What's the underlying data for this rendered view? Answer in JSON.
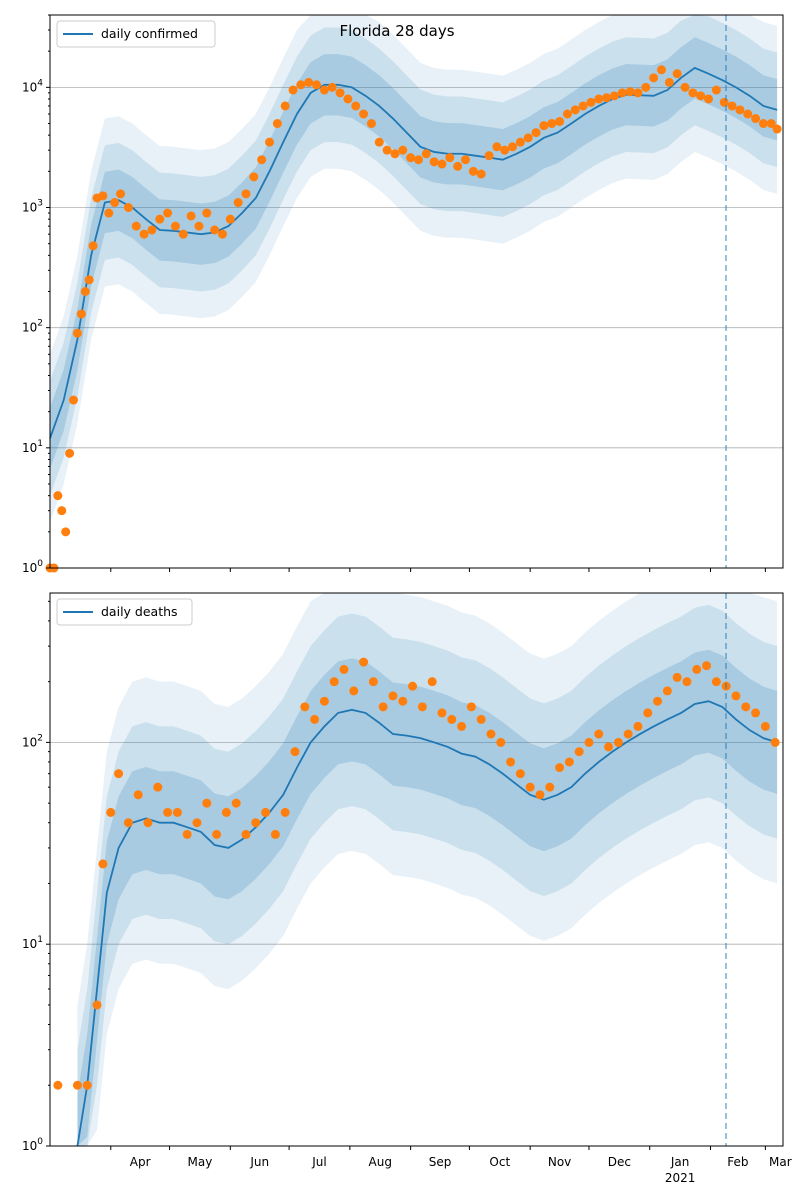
{
  "chart_data": [
    {
      "type": "line",
      "title": "Florida 28 days",
      "yscale": "log",
      "ylim": [
        1,
        40000
      ],
      "y_ticks": [
        1,
        10,
        100,
        1000,
        10000
      ],
      "y_tick_labels": [
        "10^0",
        "10^1",
        "10^2",
        "10^3",
        "10^4"
      ],
      "grid": "horizontal",
      "legend_position": "top-left",
      "series": [
        {
          "name": "daily confirmed",
          "kind": "line",
          "color": "#1f77b4",
          "x": [
            "2020-03-01",
            "2020-03-08",
            "2020-03-15",
            "2020-03-22",
            "2020-03-29",
            "2020-04-05",
            "2020-04-12",
            "2020-04-19",
            "2020-04-26",
            "2020-05-03",
            "2020-05-10",
            "2020-05-17",
            "2020-05-24",
            "2020-05-31",
            "2020-06-07",
            "2020-06-14",
            "2020-06-21",
            "2020-06-28",
            "2020-07-05",
            "2020-07-12",
            "2020-07-19",
            "2020-07-26",
            "2020-08-02",
            "2020-08-09",
            "2020-08-16",
            "2020-08-23",
            "2020-08-30",
            "2020-09-06",
            "2020-09-13",
            "2020-09-20",
            "2020-09-27",
            "2020-10-04",
            "2020-10-11",
            "2020-10-18",
            "2020-10-25",
            "2020-11-01",
            "2020-11-08",
            "2020-11-15",
            "2020-11-22",
            "2020-11-29",
            "2020-12-06",
            "2020-12-13",
            "2020-12-20",
            "2020-12-27",
            "2021-01-03",
            "2021-01-10",
            "2021-01-17",
            "2021-01-24",
            "2021-01-31",
            "2021-02-07",
            "2021-02-14",
            "2021-02-21",
            "2021-02-28",
            "2021-03-07"
          ],
          "y": [
            12,
            25,
            80,
            400,
            1100,
            1150,
            1000,
            800,
            650,
            640,
            620,
            600,
            620,
            700,
            900,
            1200,
            2000,
            3500,
            6000,
            9000,
            10500,
            10500,
            10000,
            8500,
            7000,
            5500,
            4200,
            3200,
            2900,
            2800,
            2800,
            2700,
            2600,
            2500,
            2800,
            3200,
            3800,
            4200,
            5000,
            6000,
            7000,
            8000,
            8700,
            8600,
            8500,
            9500,
            12000,
            14500,
            13000,
            11500,
            10000,
            8500,
            7000,
            6500
          ]
        },
        {
          "name": "",
          "kind": "scatter",
          "color": "#ff7f0e",
          "x": [
            "2020-03-01",
            "2020-03-03",
            "2020-03-05",
            "2020-03-07",
            "2020-03-09",
            "2020-03-11",
            "2020-03-13",
            "2020-03-15",
            "2020-03-17",
            "2020-03-19",
            "2020-03-21",
            "2020-03-23",
            "2020-03-25",
            "2020-03-28",
            "2020-03-31",
            "2020-04-03",
            "2020-04-06",
            "2020-04-10",
            "2020-04-14",
            "2020-04-18",
            "2020-04-22",
            "2020-04-26",
            "2020-04-30",
            "2020-05-04",
            "2020-05-08",
            "2020-05-12",
            "2020-05-16",
            "2020-05-20",
            "2020-05-24",
            "2020-05-28",
            "2020-06-01",
            "2020-06-05",
            "2020-06-09",
            "2020-06-13",
            "2020-06-17",
            "2020-06-21",
            "2020-06-25",
            "2020-06-29",
            "2020-07-03",
            "2020-07-07",
            "2020-07-11",
            "2020-07-15",
            "2020-07-19",
            "2020-07-23",
            "2020-07-27",
            "2020-07-31",
            "2020-08-04",
            "2020-08-08",
            "2020-08-12",
            "2020-08-16",
            "2020-08-20",
            "2020-08-24",
            "2020-08-28",
            "2020-09-01",
            "2020-09-05",
            "2020-09-09",
            "2020-09-13",
            "2020-09-17",
            "2020-09-21",
            "2020-09-25",
            "2020-09-29",
            "2020-10-03",
            "2020-10-07",
            "2020-10-11",
            "2020-10-15",
            "2020-10-19",
            "2020-10-23",
            "2020-10-27",
            "2020-10-31",
            "2020-11-04",
            "2020-11-08",
            "2020-11-12",
            "2020-11-16",
            "2020-11-20",
            "2020-11-24",
            "2020-11-28",
            "2020-12-02",
            "2020-12-06",
            "2020-12-10",
            "2020-12-14",
            "2020-12-18",
            "2020-12-22",
            "2020-12-26",
            "2020-12-30",
            "2021-01-03",
            "2021-01-07",
            "2021-01-11",
            "2021-01-15",
            "2021-01-19",
            "2021-01-23",
            "2021-01-27",
            "2021-01-31",
            "2021-02-04",
            "2021-02-08",
            "2021-02-12",
            "2021-02-16",
            "2021-02-20",
            "2021-02-24",
            "2021-02-28",
            "2021-03-04",
            "2021-03-07"
          ],
          "y": [
            1,
            1,
            4,
            3,
            2,
            9,
            25,
            90,
            130,
            200,
            250,
            480,
            1200,
            1250,
            900,
            1100,
            1300,
            1000,
            700,
            600,
            650,
            800,
            900,
            700,
            600,
            850,
            700,
            900,
            650,
            600,
            800,
            1100,
            1300,
            1800,
            2500,
            3500,
            5000,
            7000,
            9500,
            10500,
            11000,
            10500,
            9500,
            10000,
            9000,
            8000,
            7000,
            6000,
            5000,
            3500,
            3000,
            2800,
            3000,
            2600,
            2500,
            2800,
            2400,
            2300,
            2600,
            2200,
            2500,
            2000,
            1900,
            2700,
            3200,
            3000,
            3200,
            3500,
            3800,
            4200,
            4800,
            5000,
            5200,
            6000,
            6500,
            7000,
            7500,
            8000,
            8200,
            8500,
            9000,
            9200,
            9000,
            10000,
            12000,
            14000,
            11000,
            13000,
            10000,
            9000,
            8500,
            8000,
            9500,
            7500,
            7000,
            6500,
            6000,
            5500,
            5000,
            5000,
            4500
          ]
        }
      ]
    },
    {
      "type": "line",
      "title": "",
      "yscale": "log",
      "ylim": [
        1,
        550
      ],
      "y_ticks": [
        1,
        10,
        100
      ],
      "y_tick_labels": [
        "10^0",
        "10^1",
        "10^2"
      ],
      "grid": "horizontal",
      "legend_position": "top-left",
      "x_tick_labels": [
        "Apr",
        "May",
        "Jun",
        "Jul",
        "Aug",
        "Sep",
        "Oct",
        "Nov",
        "Dec",
        "Jan",
        "Feb",
        "Mar"
      ],
      "x_year_label": "2021",
      "series": [
        {
          "name": "daily deaths",
          "kind": "line",
          "color": "#1f77b4",
          "x": [
            "2020-03-15",
            "2020-03-20",
            "2020-03-25",
            "2020-03-30",
            "2020-04-05",
            "2020-04-12",
            "2020-04-19",
            "2020-04-26",
            "2020-05-03",
            "2020-05-10",
            "2020-05-17",
            "2020-05-24",
            "2020-05-31",
            "2020-06-07",
            "2020-06-14",
            "2020-06-21",
            "2020-06-28",
            "2020-07-05",
            "2020-07-12",
            "2020-07-19",
            "2020-07-26",
            "2020-08-02",
            "2020-08-09",
            "2020-08-16",
            "2020-08-23",
            "2020-08-30",
            "2020-09-06",
            "2020-09-13",
            "2020-09-20",
            "2020-09-27",
            "2020-10-04",
            "2020-10-11",
            "2020-10-18",
            "2020-10-25",
            "2020-11-01",
            "2020-11-08",
            "2020-11-15",
            "2020-11-22",
            "2020-11-29",
            "2020-12-06",
            "2020-12-13",
            "2020-12-20",
            "2020-12-27",
            "2021-01-03",
            "2021-01-10",
            "2021-01-17",
            "2021-01-24",
            "2021-01-31",
            "2021-02-07",
            "2021-02-14",
            "2021-02-21",
            "2021-02-28",
            "2021-03-07"
          ],
          "y": [
            1,
            2,
            6,
            18,
            30,
            40,
            42,
            40,
            40,
            38,
            36,
            31,
            30,
            33,
            38,
            45,
            55,
            75,
            100,
            120,
            140,
            145,
            140,
            125,
            110,
            108,
            105,
            100,
            95,
            88,
            85,
            78,
            70,
            62,
            55,
            52,
            55,
            60,
            70,
            80,
            90,
            100,
            110,
            120,
            130,
            140,
            155,
            160,
            150,
            130,
            115,
            105,
            100
          ]
        },
        {
          "name": "",
          "kind": "scatter",
          "color": "#ff7f0e",
          "x": [
            "2020-03-05",
            "2020-03-15",
            "2020-03-20",
            "2020-03-25",
            "2020-03-28",
            "2020-04-01",
            "2020-04-05",
            "2020-04-10",
            "2020-04-15",
            "2020-04-20",
            "2020-04-25",
            "2020-04-30",
            "2020-05-05",
            "2020-05-10",
            "2020-05-15",
            "2020-05-20",
            "2020-05-25",
            "2020-05-30",
            "2020-06-04",
            "2020-06-09",
            "2020-06-14",
            "2020-06-19",
            "2020-06-24",
            "2020-06-29",
            "2020-07-04",
            "2020-07-09",
            "2020-07-14",
            "2020-07-19",
            "2020-07-24",
            "2020-07-29",
            "2020-08-03",
            "2020-08-08",
            "2020-08-13",
            "2020-08-18",
            "2020-08-23",
            "2020-08-28",
            "2020-09-02",
            "2020-09-07",
            "2020-09-12",
            "2020-09-17",
            "2020-09-22",
            "2020-09-27",
            "2020-10-02",
            "2020-10-07",
            "2020-10-12",
            "2020-10-17",
            "2020-10-22",
            "2020-10-27",
            "2020-11-01",
            "2020-11-06",
            "2020-11-11",
            "2020-11-16",
            "2020-11-21",
            "2020-11-26",
            "2020-12-01",
            "2020-12-06",
            "2020-12-11",
            "2020-12-16",
            "2020-12-21",
            "2020-12-26",
            "2020-12-31",
            "2021-01-05",
            "2021-01-10",
            "2021-01-15",
            "2021-01-20",
            "2021-01-25",
            "2021-01-30",
            "2021-02-04",
            "2021-02-09",
            "2021-02-14",
            "2021-02-19",
            "2021-02-24",
            "2021-03-01",
            "2021-03-06"
          ],
          "y": [
            2,
            2,
            2,
            5,
            25,
            45,
            70,
            40,
            55,
            40,
            60,
            45,
            45,
            35,
            40,
            50,
            35,
            45,
            50,
            35,
            40,
            45,
            35,
            45,
            90,
            150,
            130,
            160,
            200,
            230,
            180,
            250,
            200,
            150,
            170,
            160,
            190,
            150,
            200,
            140,
            130,
            120,
            150,
            130,
            110,
            100,
            80,
            70,
            60,
            55,
            60,
            75,
            80,
            90,
            100,
            110,
            95,
            100,
            110,
            120,
            140,
            160,
            180,
            210,
            200,
            230,
            240,
            200,
            190,
            170,
            150,
            140,
            120,
            100
          ]
        }
      ]
    }
  ]
}
